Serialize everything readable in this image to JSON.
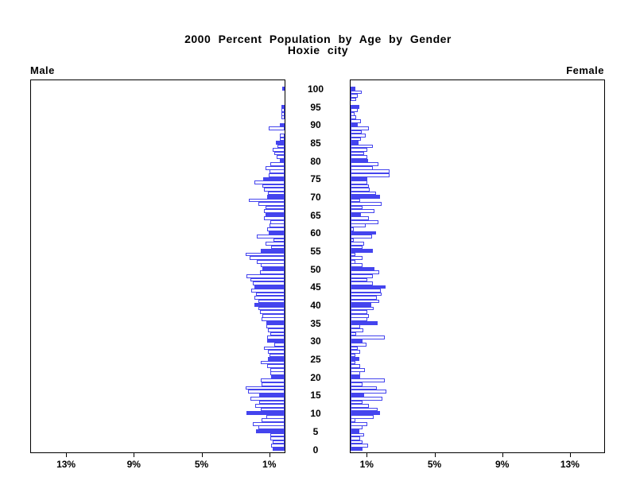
{
  "title": {
    "line1": "2000 Percent Population by Age by Gender",
    "line2": "Hoxie city"
  },
  "panels": {
    "male_label": "Male",
    "female_label": "Female"
  },
  "colors": {
    "bar_blue": "#4444ee",
    "frame": "#000000",
    "text": "#000000",
    "background": "#ffffff"
  },
  "chart_data": {
    "type": "bar",
    "subtype": "population-pyramid",
    "title": "2000 Percent Population by Age by Gender",
    "subtitle": "Hoxie city",
    "orientation": "horizontal back-to-back; male axis reversed (grows leftward), female grows rightward",
    "units": "percent of total population per single year of age",
    "age_axis": {
      "min": 0,
      "max": 100,
      "labeled_ticks": [
        0,
        5,
        10,
        15,
        20,
        25,
        30,
        35,
        40,
        45,
        50,
        55,
        60,
        65,
        70,
        75,
        80,
        85,
        90,
        95,
        100
      ]
    },
    "pct_axis": {
      "min": 0,
      "max": 15,
      "tick_values": [
        1,
        5,
        9,
        13
      ],
      "male_tick_labels": [
        "13%",
        "9%",
        "5%",
        "1%"
      ],
      "female_tick_labels": [
        "1%",
        "5%",
        "9%",
        "13%"
      ]
    },
    "highlight_rule": "bars for ages divisible by 5 are solid filled blue; all other ages are hollow (white fill, blue outline)",
    "grid": false,
    "legend": false,
    "series": [
      {
        "name": "Male",
        "values": [
          0.7,
          0.8,
          0.7,
          0.85,
          0.85,
          1.7,
          1.55,
          1.9,
          1.35,
          1.1,
          2.25,
          1.4,
          1.75,
          1.5,
          2.0,
          1.5,
          2.15,
          2.3,
          1.35,
          1.4,
          0.8,
          0.85,
          0.85,
          1.05,
          1.4,
          1.0,
          0.9,
          1.0,
          1.2,
          0.6,
          1.05,
          1.05,
          0.85,
          1.0,
          1.1,
          1.1,
          1.35,
          1.3,
          1.45,
          1.55,
          1.8,
          1.55,
          1.8,
          1.7,
          1.95,
          1.8,
          1.9,
          2.0,
          2.25,
          1.45,
          1.3,
          1.4,
          1.65,
          2.05,
          2.3,
          1.4,
          0.8,
          1.15,
          0.65,
          1.65,
          0.95,
          1.05,
          0.9,
          0.85,
          1.2,
          1.15,
          1.2,
          1.15,
          1.55,
          2.1,
          1.05,
          1.0,
          1.2,
          1.3,
          1.8,
          1.25,
          0.95,
          0.9,
          1.15,
          0.85,
          0.3,
          0.45,
          0.6,
          0.7,
          0.4,
          0.5,
          0.3,
          0.3,
          0.0,
          0.95,
          0.3,
          0.0,
          0.2,
          0.2,
          0.2,
          0.2,
          0.0,
          0.0,
          0.0,
          0.0,
          0.15
        ]
      },
      {
        "name": "Female",
        "values": [
          0.7,
          1.05,
          0.7,
          0.55,
          0.8,
          0.5,
          0.7,
          1.0,
          0.3,
          1.35,
          1.75,
          1.6,
          1.1,
          0.7,
          1.9,
          0.8,
          2.1,
          1.55,
          0.7,
          2.0,
          0.55,
          0.55,
          0.85,
          0.55,
          0.3,
          0.5,
          0.3,
          0.55,
          0.4,
          0.95,
          0.7,
          2.0,
          0.35,
          0.75,
          0.55,
          1.6,
          1.0,
          1.1,
          1.0,
          1.35,
          1.2,
          1.7,
          1.55,
          1.85,
          1.8,
          2.05,
          1.3,
          1.0,
          1.3,
          1.7,
          1.4,
          0.7,
          0.3,
          0.7,
          0.3,
          1.3,
          0.7,
          0.8,
          0.2,
          1.25,
          1.5,
          0.2,
          0.9,
          1.65,
          1.1,
          0.6,
          1.4,
          0.7,
          1.85,
          0.55,
          1.75,
          1.5,
          1.15,
          1.1,
          1.0,
          1.0,
          2.3,
          2.3,
          1.3,
          1.65,
          1.05,
          1.0,
          0.8,
          1.0,
          1.3,
          0.45,
          0.6,
          0.9,
          0.65,
          1.1,
          0.4,
          0.6,
          0.35,
          0.25,
          0.4,
          0.5,
          0.0,
          0.35,
          0.4,
          0.65,
          0.3
        ]
      }
    ]
  }
}
